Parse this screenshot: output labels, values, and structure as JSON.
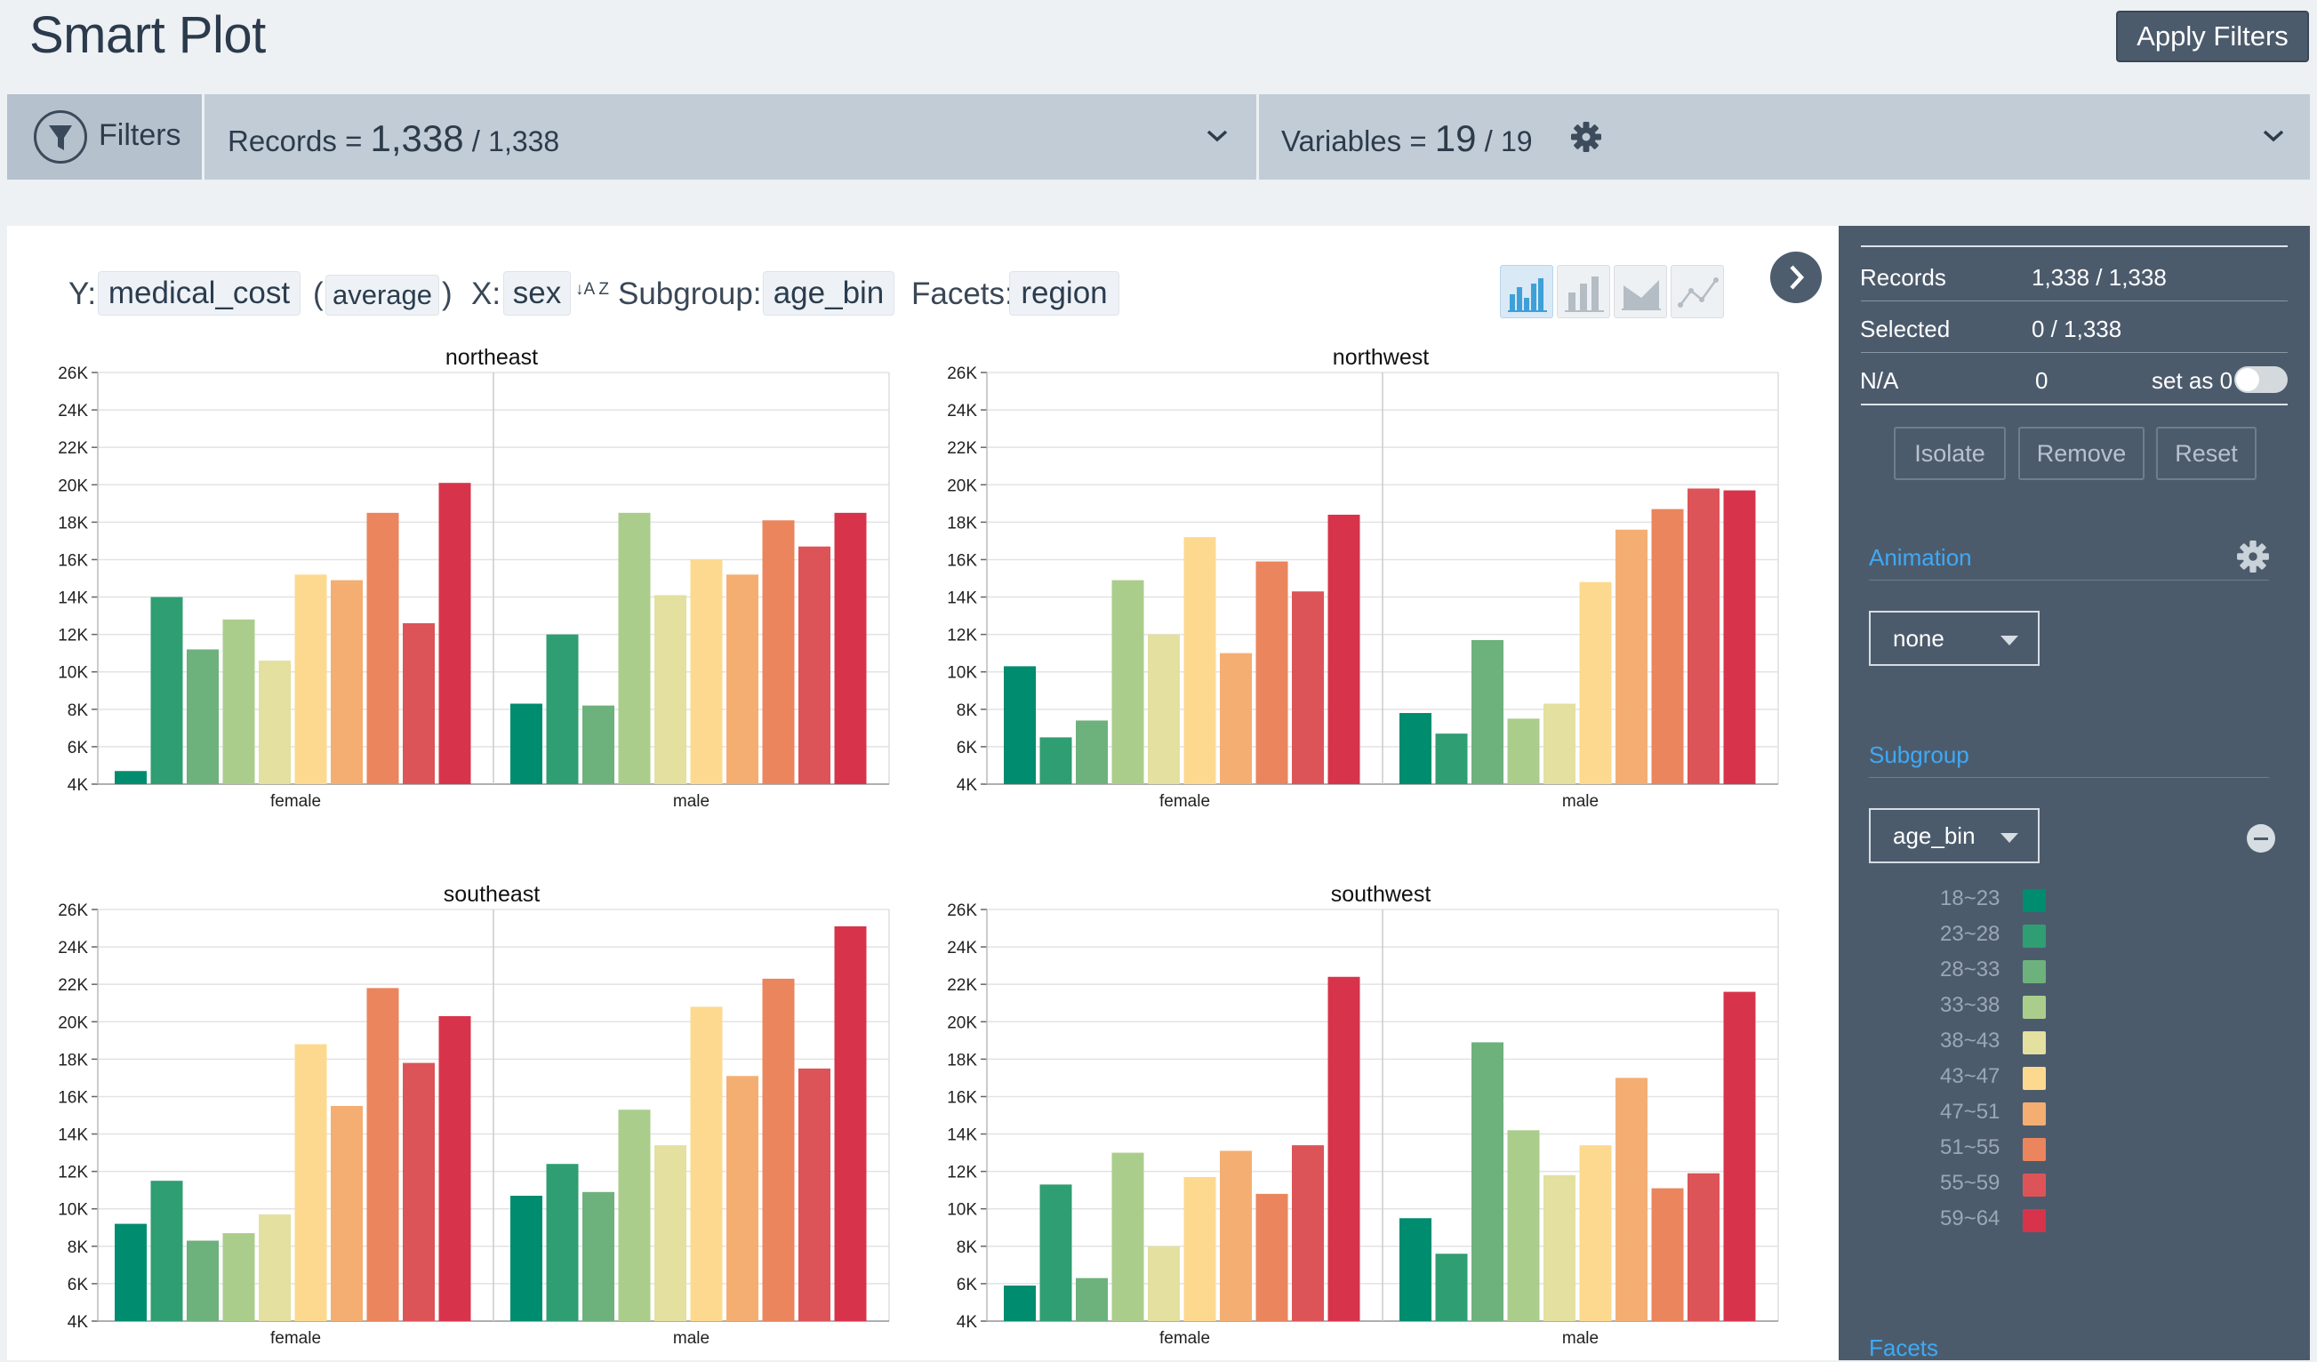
{
  "header": {
    "title": "Smart Plot",
    "apply_button": "Apply Filters"
  },
  "filterbar": {
    "filters_label": "Filters",
    "records_label": "Records",
    "records_value": "1,338",
    "records_total": "1,338",
    "variables_label": "Variables",
    "variables_value": "19",
    "variables_total": "19"
  },
  "spec": {
    "y_label": "Y:",
    "y_var": "medical_cost",
    "agg": "average",
    "x_label": "X:",
    "x_var": "sex",
    "sort_icon_text": "↓A Z",
    "subgroup_label": "Subgroup:",
    "subgroup_var": "age_bin",
    "facets_label": "Facets:",
    "facets_var": "region"
  },
  "sidebar": {
    "records_label": "Records",
    "records_value": "1,338 / 1,338",
    "selected_label": "Selected",
    "selected_value": "0 / 1,338",
    "na_label": "N/A",
    "na_value": "0",
    "set_as_zero": "set as 0",
    "isolate": "Isolate",
    "remove": "Remove",
    "reset": "Reset",
    "animation_title": "Animation",
    "animation_value": "none",
    "subgroup_title": "Subgroup",
    "subgroup_value": "age_bin",
    "facets_title": "Facets"
  },
  "colors": {
    "age_bins": [
      "#008c6e",
      "#2f9e72",
      "#6db17c",
      "#abcd8c",
      "#e3e0a0",
      "#fdd98f",
      "#f4ae72",
      "#ea855d",
      "#dd5458",
      "#d7344c"
    ]
  },
  "chart_data": {
    "type": "bar",
    "title": "",
    "ylabel": "medical_cost (average)",
    "xlabel": "sex",
    "ylim": [
      4000,
      26000
    ],
    "yticks": [
      "4K",
      "6K",
      "8K",
      "10K",
      "12K",
      "14K",
      "16K",
      "18K",
      "20K",
      "22K",
      "24K",
      "26K"
    ],
    "categories": [
      "female",
      "male"
    ],
    "subgroups": [
      "18~23",
      "23~28",
      "28~33",
      "33~38",
      "38~43",
      "43~47",
      "47~51",
      "51~55",
      "55~59",
      "59~64"
    ],
    "facets": [
      {
        "name": "northeast",
        "female": [
          4700,
          14000,
          11200,
          12800,
          10600,
          15200,
          14900,
          18500,
          12600,
          20100
        ],
        "male": [
          8300,
          12000,
          8200,
          18500,
          14100,
          16000,
          15200,
          18100,
          16700,
          18500
        ]
      },
      {
        "name": "northwest",
        "female": [
          10300,
          6500,
          7400,
          14900,
          12000,
          17200,
          11000,
          15900,
          14300,
          18400
        ],
        "male": [
          7800,
          6700,
          11700,
          7500,
          8300,
          14800,
          17600,
          18700,
          19800,
          19700
        ]
      },
      {
        "name": "southeast",
        "female": [
          9200,
          11500,
          8300,
          8700,
          9700,
          18800,
          15500,
          21800,
          17800,
          20300
        ],
        "male": [
          10700,
          12400,
          10900,
          15300,
          13400,
          20800,
          17100,
          22300,
          17500,
          25100
        ]
      },
      {
        "name": "southwest",
        "female": [
          5900,
          11300,
          6300,
          13000,
          8000,
          11700,
          13100,
          10800,
          13400,
          22400
        ],
        "male": [
          9500,
          7600,
          18900,
          14200,
          11800,
          13400,
          17000,
          11100,
          11900,
          21600
        ]
      }
    ]
  }
}
